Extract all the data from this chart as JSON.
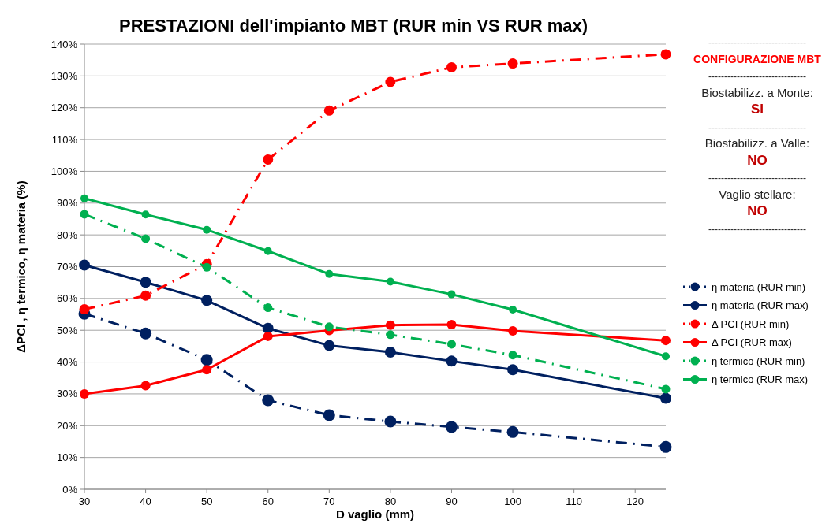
{
  "chart_data": {
    "type": "line",
    "title": "PRESTAZIONI dell'impianto MBT (RUR min VS RUR max)",
    "xlabel": "D vaglio (mm)",
    "ylabel": "ΔPCI , η termico, η materia (%)",
    "x": [
      30,
      40,
      50,
      60,
      70,
      80,
      90,
      100,
      125
    ],
    "xlim": [
      30,
      125
    ],
    "xticks": [
      30,
      40,
      50,
      60,
      70,
      80,
      90,
      100,
      110,
      120
    ],
    "ylim": [
      0,
      140
    ],
    "yticks": [
      {
        "value": 0,
        "label": "0%"
      },
      {
        "value": 10,
        "label": "10%"
      },
      {
        "value": 20,
        "label": "20%"
      },
      {
        "value": 30,
        "label": "30%"
      },
      {
        "value": 40,
        "label": "40%"
      },
      {
        "value": 50,
        "label": "50%"
      },
      {
        "value": 60,
        "label": "60%"
      },
      {
        "value": 70,
        "label": "70%"
      },
      {
        "value": 80,
        "label": "80%"
      },
      {
        "value": 90,
        "label": "90%"
      },
      {
        "value": 100,
        "label": "100%"
      },
      {
        "value": 110,
        "label": "110%"
      },
      {
        "value": 120,
        "label": "120%"
      },
      {
        "value": 130,
        "label": "130%"
      },
      {
        "value": 140,
        "label": "140%"
      }
    ],
    "grid": "y",
    "legend": "right",
    "marker": "circle",
    "series": [
      {
        "name": "η materia (RUR min)",
        "color": "#002060",
        "line_style": "dashdot",
        "values": [
          55.2,
          49,
          40.7,
          28,
          23.3,
          21.3,
          19.6,
          18,
          13.3
        ]
      },
      {
        "name": "η materia (RUR max)",
        "color": "#002060",
        "line_style": "solid",
        "values": [
          70.5,
          65.1,
          59.4,
          50.6,
          45.2,
          43.1,
          40.3,
          37.6,
          28.6
        ]
      },
      {
        "name": "Δ PCI (RUR min)",
        "color": "#ff0000",
        "line_style": "dashdot",
        "values": [
          56.6,
          60.9,
          70.8,
          103.7,
          119.1,
          128.1,
          132.7,
          133.9,
          136.8
        ]
      },
      {
        "name": "Δ PCI (RUR max)",
        "color": "#ff0000",
        "line_style": "solid",
        "values": [
          30,
          32.6,
          37.6,
          48.1,
          49.9,
          51.6,
          51.8,
          49.8,
          46.8
        ]
      },
      {
        "name": "η termico (RUR min)",
        "color": "#00b050",
        "line_style": "dashdot",
        "values": [
          86.5,
          78.8,
          69.8,
          57.1,
          51.1,
          48.6,
          45.6,
          42.2,
          31.5
        ]
      },
      {
        "name": "η termico (RUR max)",
        "color": "#00b050",
        "line_style": "solid",
        "values": [
          91.5,
          86.4,
          81.6,
          74.9,
          67.7,
          65.3,
          61.3,
          56.5,
          41.8
        ]
      }
    ],
    "annotations": [
      "-------------------------------",
      "CONFIGURAZIONE MBT",
      "-------------------------------",
      "Biostabilizz. a Monte:",
      "SI",
      "-------------------------------",
      "Biostabilizz. a Valle:",
      "NO",
      "-------------------------------",
      "Vaglio stellare:",
      "NO",
      "-------------------------------"
    ]
  }
}
